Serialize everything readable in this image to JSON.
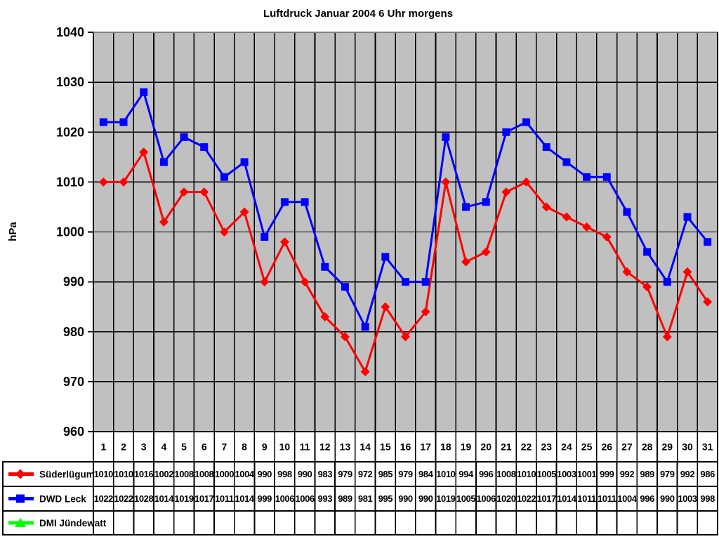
{
  "chart_data": {
    "type": "line",
    "title": "Luftdruck Januar 2004 6 Uhr morgens",
    "ylabel": "hPa",
    "xlabel": "",
    "ylim": [
      960,
      1040
    ],
    "yticks": [
      960,
      970,
      980,
      990,
      1000,
      1010,
      1020,
      1030,
      1040
    ],
    "grid": true,
    "plot_bg": "#c0c0c0",
    "gridline_color": "#000000",
    "top_border_color": "#808080",
    "legend_position": "table-left",
    "categories": [
      1,
      2,
      3,
      4,
      5,
      6,
      7,
      8,
      9,
      10,
      11,
      12,
      13,
      14,
      15,
      16,
      17,
      18,
      19,
      20,
      21,
      22,
      23,
      24,
      25,
      26,
      27,
      28,
      29,
      30,
      31
    ],
    "series": [
      {
        "name": "Süderlügum",
        "color": "#ff0000",
        "marker": "diamond",
        "values": [
          1010,
          1010,
          1016,
          1002,
          1008,
          1008,
          1000,
          1004,
          990,
          998,
          990,
          983,
          979,
          972,
          985,
          979,
          984,
          1010,
          994,
          996,
          1008,
          1010,
          1005,
          1003,
          1001,
          999,
          992,
          989,
          979,
          992,
          986
        ]
      },
      {
        "name": "DWD Leck",
        "color": "#0000ff",
        "marker": "square",
        "values": [
          1022,
          1022,
          1028,
          1014,
          1019,
          1017,
          1011,
          1014,
          999,
          1006,
          1006,
          993,
          989,
          981,
          995,
          990,
          990,
          1019,
          1005,
          1006,
          1020,
          1022,
          1017,
          1014,
          1011,
          1011,
          1004,
          996,
          990,
          1003,
          998
        ]
      },
      {
        "name": "DMI Jündewatt",
        "color": "#00ff00",
        "marker": "triangle",
        "values": []
      }
    ]
  }
}
